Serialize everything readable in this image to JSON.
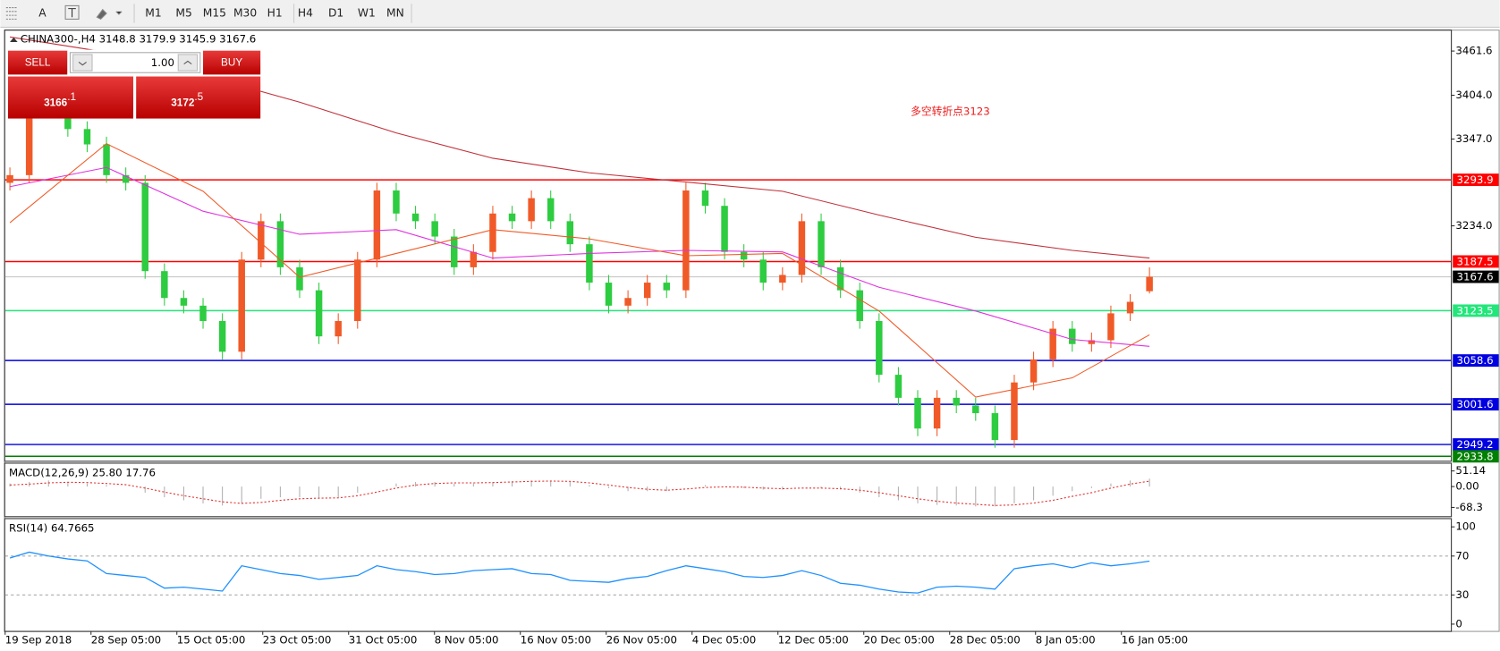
{
  "toolbar": {
    "items": [
      "A",
      "M1",
      "M5",
      "M15",
      "M30",
      "H1",
      "H4",
      "D1",
      "W1",
      "MN"
    ]
  },
  "trade_panel": {
    "sell": "SELL",
    "buy": "BUY",
    "volume": "1.00",
    "bid_main": "3166",
    "bid_frac": ".1",
    "ask_main": "3172",
    "ask_frac": ".5"
  },
  "chart_data": [
    {
      "type": "candlestick",
      "title": "CHINA300-,H4  3148.8 3179.9 3145.9 3167.6",
      "annotation": "多空转折点3123",
      "open": [
        3290,
        3300,
        3385,
        3390,
        3360,
        3340,
        3300,
        3290,
        3175,
        3140,
        3130,
        3110,
        3070,
        3190,
        3240,
        3180,
        3150,
        3090,
        3110,
        3190,
        3280,
        3250,
        3240,
        3220,
        3180,
        3200,
        3250,
        3240,
        3270,
        3240,
        3210,
        3160,
        3130,
        3140,
        3160,
        3150,
        3280,
        3260,
        3200,
        3190,
        3160,
        3170,
        3240,
        3180,
        3150,
        3110,
        3040,
        3010,
        2970,
        3010,
        3000,
        2990,
        2955,
        3030,
        3060,
        3100,
        3080,
        3085,
        3120,
        3148.8
      ],
      "high": [
        3310,
        3395,
        3400,
        3400,
        3370,
        3350,
        3310,
        3300,
        3185,
        3150,
        3140,
        3120,
        3200,
        3250,
        3250,
        3190,
        3160,
        3120,
        3200,
        3290,
        3290,
        3260,
        3250,
        3230,
        3210,
        3260,
        3260,
        3280,
        3280,
        3250,
        3220,
        3170,
        3150,
        3170,
        3170,
        3290,
        3290,
        3270,
        3210,
        3200,
        3180,
        3250,
        3250,
        3190,
        3160,
        3120,
        3050,
        3020,
        3020,
        3020,
        3010,
        3000,
        3040,
        3070,
        3110,
        3110,
        3095,
        3130,
        3145,
        3179.9
      ],
      "low": [
        3280,
        3290,
        3375,
        3350,
        3330,
        3290,
        3280,
        3165,
        3130,
        3120,
        3100,
        3060,
        3060,
        3180,
        3170,
        3140,
        3080,
        3080,
        3100,
        3180,
        3240,
        3230,
        3210,
        3170,
        3170,
        3190,
        3230,
        3230,
        3230,
        3200,
        3150,
        3120,
        3120,
        3130,
        3140,
        3140,
        3250,
        3190,
        3180,
        3150,
        3150,
        3160,
        3170,
        3140,
        3100,
        3030,
        3000,
        2960,
        2960,
        2990,
        2980,
        2945,
        2945,
        3020,
        3050,
        3070,
        3070,
        3075,
        3110,
        3145.9
      ],
      "close": [
        3300,
        3385,
        3390,
        3360,
        3340,
        3300,
        3290,
        3175,
        3140,
        3130,
        3110,
        3070,
        3190,
        3240,
        3180,
        3150,
        3090,
        3110,
        3190,
        3280,
        3250,
        3240,
        3220,
        3180,
        3200,
        3250,
        3240,
        3270,
        3240,
        3210,
        3160,
        3130,
        3140,
        3160,
        3150,
        3280,
        3260,
        3200,
        3190,
        3160,
        3170,
        3240,
        3180,
        3150,
        3110,
        3040,
        3010,
        2970,
        3010,
        3000,
        2990,
        2955,
        3030,
        3060,
        3100,
        3080,
        3085,
        3120,
        3135,
        3167.6
      ],
      "up_color": "#f05a28",
      "down_color": "#2ecc40",
      "ma_index": [
        0,
        5,
        10,
        15,
        20,
        25,
        30,
        35,
        40,
        45,
        50,
        55,
        59
      ],
      "moving_averages": [
        {
          "color": "#c0303a",
          "values": [
            3480,
            3460,
            3430,
            3395,
            3355,
            3322,
            3303,
            3291,
            3279,
            3248,
            3219,
            3202,
            3192
          ]
        },
        {
          "color": "#e030e0",
          "values": [
            3285,
            3310,
            3253,
            3223,
            3229,
            3192,
            3198,
            3202,
            3200,
            3154,
            3123,
            3086,
            3077
          ]
        },
        {
          "color": "#f05a28",
          "values": [
            3238,
            3341,
            3279,
            3167,
            3198,
            3229,
            3217,
            3195,
            3198,
            3123,
            3011,
            3036,
            3092
          ]
        }
      ],
      "levels": [
        {
          "value": 3293.9,
          "color": "#ff0000"
        },
        {
          "value": 3187.5,
          "color": "#ff0000"
        },
        {
          "value": 3167.6,
          "color": "#000000"
        },
        {
          "value": 3123.5,
          "color": "#22e67a"
        },
        {
          "value": 3058.6,
          "color": "#0000e0"
        },
        {
          "value": 3001.6,
          "color": "#0000e0"
        },
        {
          "value": 2949.2,
          "color": "#0000e0"
        },
        {
          "value": 2933.8,
          "color": "#008000"
        }
      ],
      "ylim": [
        2928,
        3487
      ],
      "yticks": [
        3461.6,
        {
          "value": 3404,
          "label": "3404.0"
        },
        {
          "value": 3347,
          "label": "3347.0"
        },
        {
          "value": 3234,
          "label": "3234.0"
        }
      ],
      "x_labels": [
        "19 Sep 2018",
        "28 Sep 05:00",
        "15 Oct 05:00",
        "23 Oct 05:00",
        "31 Oct 05:00",
        "8 Nov 05:00",
        "16 Nov 05:00",
        "26 Nov 05:00",
        "4 Dec 05:00",
        "12 Dec 05:00",
        "20 Dec 05:00",
        "28 Dec 05:00",
        "8 Jan 05:00",
        "16 Jan 05:00"
      ]
    },
    {
      "type": "macd",
      "title": "MACD(12,26,9) 25.80 17.76",
      "values": [
        10,
        15,
        20,
        15,
        10,
        5,
        0,
        -20,
        -35,
        -45,
        -55,
        -62,
        -55,
        -40,
        -35,
        -35,
        -40,
        -35,
        -20,
        0,
        10,
        15,
        15,
        10,
        10,
        15,
        18,
        20,
        18,
        15,
        5,
        -5,
        -15,
        -15,
        -15,
        0,
        5,
        0,
        -5,
        -10,
        -10,
        0,
        -5,
        -10,
        -20,
        -35,
        -45,
        -55,
        -60,
        -62,
        -65,
        -65,
        -55,
        -45,
        -30,
        -15,
        -5,
        10,
        20,
        25.8
      ],
      "signal": [
        5,
        8,
        12,
        14,
        13,
        10,
        6,
        -5,
        -18,
        -30,
        -40,
        -50,
        -55,
        -52,
        -45,
        -40,
        -38,
        -37,
        -30,
        -18,
        -5,
        5,
        10,
        12,
        12,
        13,
        15,
        17,
        18,
        17,
        12,
        5,
        -3,
        -9,
        -12,
        -8,
        -3,
        -1,
        -2,
        -5,
        -7,
        -5,
        -5,
        -7,
        -12,
        -20,
        -30,
        -40,
        -48,
        -54,
        -58,
        -62,
        -60,
        -54,
        -45,
        -32,
        -20,
        -5,
        8,
        17.76
      ],
      "color": "#b0b0b0",
      "signal_color": "#e03030",
      "ylim": [
        -97,
        75
      ],
      "yticks": [
        51.14,
        {
          "value": 0,
          "label": "0.00"
        },
        -68.3
      ]
    },
    {
      "type": "line",
      "title": "RSI(14) 64.7665",
      "values": [
        68,
        74,
        70,
        67,
        65,
        52,
        50,
        48,
        37,
        38,
        36,
        34,
        60,
        56,
        52,
        50,
        46,
        48,
        50,
        60,
        56,
        54,
        51,
        52,
        55,
        56,
        57,
        52,
        51,
        45,
        44,
        43,
        47,
        49,
        55,
        60,
        57,
        54,
        49,
        48,
        50,
        55,
        50,
        42,
        40,
        36,
        33,
        32,
        38,
        39,
        38,
        36,
        57,
        60,
        62,
        58,
        63,
        60,
        62,
        64.7665
      ],
      "color": "#1e90ff",
      "ylim": [
        -7,
        108
      ],
      "yticks": [
        100,
        70,
        30,
        0
      ],
      "levels": [
        70,
        30
      ]
    }
  ]
}
